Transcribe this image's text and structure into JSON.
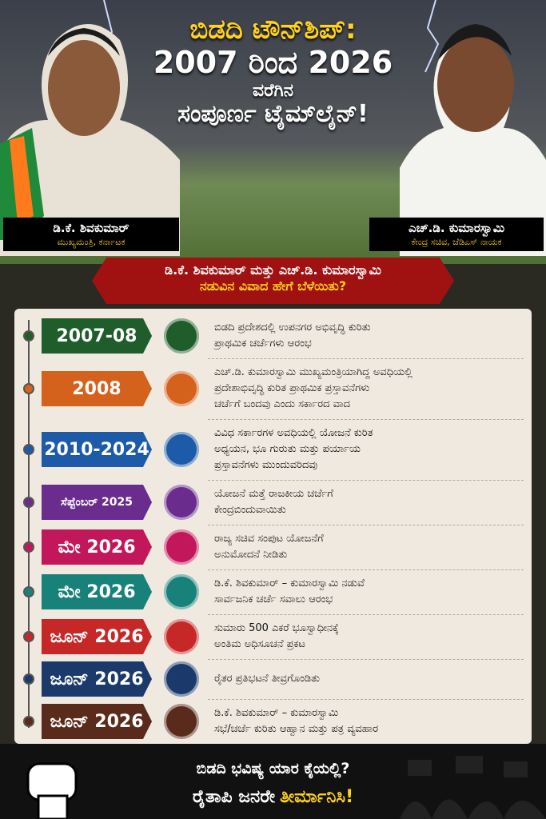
{
  "header": {
    "title_lines": [
      "ಬಿಡದಿ ಟೌನ್‌ಶಿಪ್:",
      "2007 ರಿಂದ 2026",
      "ವರೆಗಿನ",
      "ಸಂಪೂರ್ಣ ಟೈಮ್‌ಲೈನ್!"
    ],
    "left_person": {
      "name": "ಡಿ.ಕೆ. ಶಿವಕುಮಾರ್",
      "role": "ಮುಖ್ಯಮಂತ್ರಿ, ಕರ್ನಾಟಕ"
    },
    "right_person": {
      "name": "ಎಚ್.ಡಿ. ಕುಮಾರಸ್ವಾಮಿ",
      "role": "ಕೇಂದ್ರ ಸಚಿವ, ಜೆಡಿಎಸ್ ನಾಯಕ"
    }
  },
  "banner": {
    "lines": [
      "ಡಿ.ಕೆ. ಶಿವಕುಮಾರ್ ಮತ್ತು ಎಚ್.ಡಿ. ಕುಮಾರಸ್ವಾಮಿ",
      "ನಡುವಿನ ವಿವಾದ ಹೇಗೆ ಬೆಳೆಯಿತು?"
    ]
  },
  "timeline": [
    {
      "date": "2007-08",
      "color": "#1f5e2a",
      "text": [
        "ಬಿಡದಿ ಪ್ರದೇಶದಲ್ಲಿ ಉಪನಗರ ಅಭಿವೃದ್ಧಿ ಕುರಿತು",
        "ಪ್ರಾಥಮಿಕ ಚರ್ಚೆಗಳು ಆರಂಭ"
      ]
    },
    {
      "date": "2008",
      "color": "#d5621c",
      "text": [
        "ಎಚ್.ಡಿ. ಕುಮಾರಸ್ವಾಮಿ ಮುಖ್ಯಮಂತ್ರಿಯಾಗಿದ್ದ ಅವಧಿಯಲ್ಲಿ",
        "ಪ್ರದೇಶಾಭಿವೃದ್ಧಿ ಕುರಿತ ಪ್ರಾಥಮಿಕ ಪ್ರಸ್ತಾವನೆಗಳು",
        "ಚರ್ಚೆಗೆ ಬಂದವು ಎಂದು ಸರ್ಕಾರದ ವಾದ"
      ]
    },
    {
      "date": "2010-2024",
      "color": "#1d5aa8",
      "text": [
        "ವಿವಿಧ ಸರ್ಕಾರಗಳ ಅವಧಿಯಲ್ಲಿ ಯೋಜನೆ ಕುರಿತ",
        "ಅಧ್ಯಯನ, ಭೂ ಗುರುತು ಮತ್ತು ಪರ್ಯಾಯ",
        "ಪ್ರಸ್ತಾವನೆಗಳು ಮುಂದುವರಿದವು"
      ]
    },
    {
      "date": "ಸೆಪ್ಟೆಂಬರ್ 2025",
      "color": "#6a2d8e",
      "text": [
        "ಯೋಜನೆ ಮತ್ತೆ ರಾಜಕೀಯ ಚರ್ಚೆಗೆ",
        "ಕೇಂದ್ರಬಿಂದುವಾಯಿತು"
      ]
    },
    {
      "date": "ಮೇ 2026",
      "color": "#c2185b",
      "text": [
        "ರಾಜ್ಯ ಸಚಿವ ಸಂಪುಟ ಯೋಜನೆಗೆ",
        "ಅನುಮೋದನೆ ನೀಡಿತು"
      ]
    },
    {
      "date": "ಮೇ 2026",
      "color": "#17817a",
      "text": [
        "ಡಿ.ಕೆ. ಶಿವಕುಮಾರ್ – ಕುಮಾರಸ್ವಾಮಿ ನಡುವೆ",
        "ಸಾರ್ವಜನಿಕ ಚರ್ಚೆ ಸವಾಲು ಆರಂಭ"
      ]
    },
    {
      "date": "ಜೂನ್ 2026",
      "color": "#c62828",
      "text": [
        "ಸುಮಾರು 500 ಎಕರೆ ಭೂಸ್ವಾಧೀನಕ್ಕೆ",
        "ಅಂತಿಮ ಅಧಿಸೂಚನೆ ಪ್ರಕಟ"
      ]
    },
    {
      "date": "ಜೂನ್ 2026",
      "color": "#1b3a6b",
      "text": [
        "ರೈತರ ಪ್ರತಿಭಟನೆ ತೀವ್ರಗೊಂಡಿತು"
      ]
    },
    {
      "date": "ಜೂನ್ 2026",
      "color": "#5a2a1a",
      "text": [
        "ಡಿ.ಕೆ. ಶಿವಕುಮಾರ್ – ಕುಮಾರಸ್ವಾಮಿ",
        "ಸಭೆ/ಚರ್ಚೆ ಕುರಿತು ಆಹ್ವಾನ ಮತ್ತು ಪತ್ರ ವ್ಯವಹಾರ"
      ]
    }
  ],
  "footer": {
    "line1": "ಬಿಡದಿ ಭವಿಷ್ಯ ಯಾರ ಕೈಯಲ್ಲಿ?",
    "line2_prefix": "ರೈತಾಪಿ ಜನರೇ",
    "line2_highlight": "ತೀರ್ಮಾನಿಸಿ!"
  }
}
